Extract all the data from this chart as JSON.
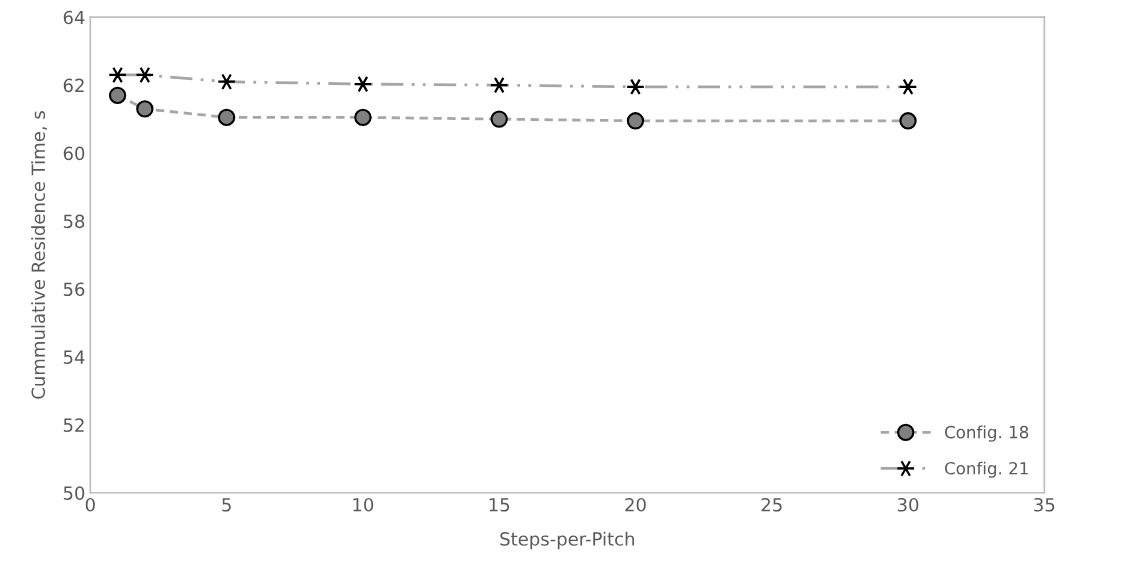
{
  "chart_data": {
    "type": "line",
    "xlabel": "Steps-per-Pitch",
    "ylabel": "Cummulative Residence Time, s",
    "xlim": [
      0,
      35
    ],
    "xticks": [
      0,
      5,
      10,
      15,
      20,
      25,
      30,
      35
    ],
    "ylim": [
      50,
      64
    ],
    "yticks": [
      50,
      52,
      54,
      56,
      58,
      60,
      62,
      64
    ],
    "grid": false,
    "legend": "bottom right",
    "series": [
      {
        "name": "Config. 18",
        "color": "#a6a6a6",
        "marker": "circle",
        "line_style": "dashed",
        "x": [
          1,
          2,
          5,
          10,
          15,
          20,
          30
        ],
        "values": [
          61.7,
          61.3,
          61.05,
          61.05,
          61.0,
          60.95,
          60.95
        ]
      },
      {
        "name": "Config. 21",
        "color": "#a6a6a6",
        "marker": "cross",
        "line_style": "dashdot",
        "x": [
          1,
          2,
          5,
          10,
          15,
          20,
          30
        ],
        "values": [
          62.3,
          62.3,
          62.1,
          62.03,
          62.0,
          61.95,
          61.95
        ]
      }
    ]
  }
}
